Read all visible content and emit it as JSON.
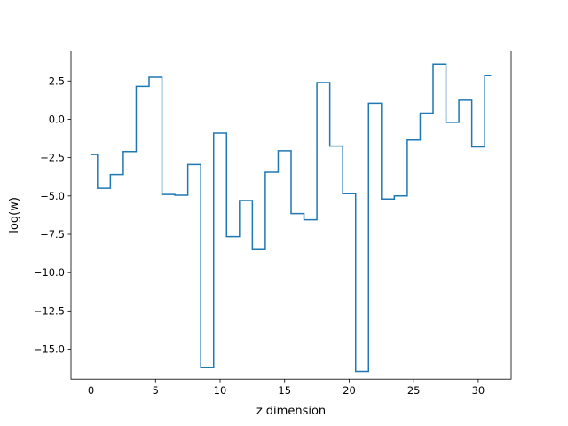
{
  "chart_data": {
    "type": "line",
    "drawstyle": "steps-mid",
    "xlabel": "z dimension",
    "ylabel": "log(w)",
    "xlim": [
      -1.55,
      32.55
    ],
    "ylim": [
      -16.95,
      4.45
    ],
    "xticks": [
      0,
      5,
      10,
      15,
      20,
      25,
      30
    ],
    "xtick_labels": [
      "0",
      "5",
      "10",
      "15",
      "20",
      "25",
      "30"
    ],
    "yticks": [
      2.5,
      0.0,
      -2.5,
      -5.0,
      -7.5,
      -10.0,
      -12.5,
      -15.0
    ],
    "ytick_labels": [
      "2.5",
      "0.0",
      "−2.5",
      "−5.0",
      "−7.5",
      "−10.0",
      "−12.5",
      "−15.0"
    ],
    "grid": false,
    "line_color": "#1f77b4",
    "x": [
      0,
      1,
      2,
      3,
      4,
      5,
      6,
      7,
      8,
      9,
      10,
      11,
      12,
      13,
      14,
      15,
      16,
      17,
      18,
      19,
      20,
      21,
      22,
      23,
      24,
      25,
      26,
      27,
      28,
      29,
      30,
      31
    ],
    "y": [
      -2.3,
      -4.5,
      -3.6,
      -2.1,
      2.15,
      2.75,
      -4.9,
      -4.95,
      -2.95,
      -16.2,
      -0.9,
      -7.65,
      -5.3,
      -8.5,
      -3.45,
      -2.05,
      -6.15,
      -6.55,
      2.4,
      -1.75,
      -4.85,
      -16.45,
      1.05,
      -5.2,
      -5.0,
      -1.35,
      0.4,
      3.6,
      -0.2,
      1.25,
      -1.8,
      2.85
    ]
  }
}
